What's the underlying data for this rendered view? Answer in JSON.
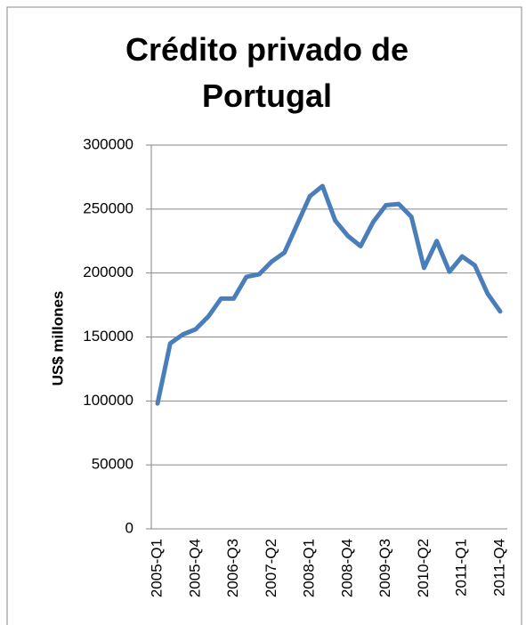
{
  "chart_data": {
    "type": "line",
    "title": "Crédito privado de Portugal",
    "y_label": "US$ millones",
    "categories": [
      "2005-Q1",
      null,
      null,
      "2005-Q4",
      null,
      null,
      "2006-Q3",
      null,
      null,
      "2007-Q2",
      null,
      null,
      "2008-Q1",
      null,
      null,
      "2008-Q4",
      null,
      null,
      "2009-Q3",
      null,
      null,
      "2010-Q2",
      null,
      null,
      "2011-Q1",
      null,
      null,
      "2011-Q4"
    ],
    "series": [
      {
        "name": "Crédito privado",
        "color": "#4a7ebb",
        "values": [
          98000,
          145000,
          152000,
          156000,
          166000,
          180000,
          180000,
          197000,
          199000,
          209000,
          216000,
          238000,
          260000,
          268000,
          241000,
          229000,
          221000,
          240000,
          253000,
          254000,
          244000,
          204000,
          225000,
          201000,
          213000,
          206000,
          184000,
          170000
        ]
      }
    ],
    "ylim": [
      0,
      300000
    ],
    "yticks": [
      0,
      50000,
      100000,
      150000,
      200000,
      250000,
      300000
    ],
    "grid": true
  }
}
